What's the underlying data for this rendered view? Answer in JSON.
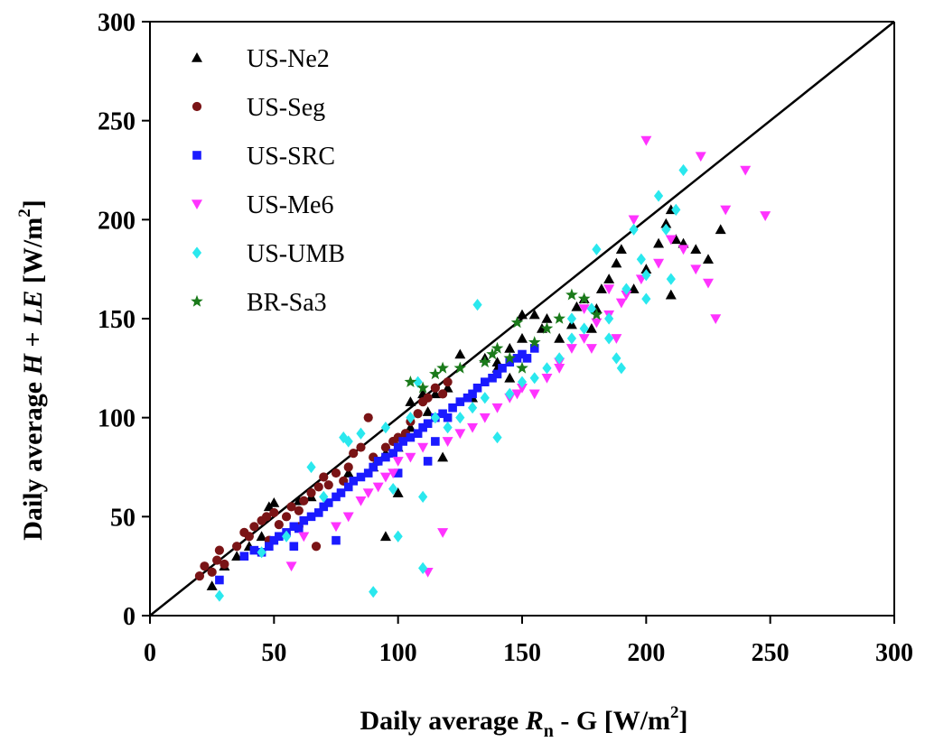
{
  "chart_data": {
    "type": "scatter",
    "xlabel": {
      "prefix": "Daily average ",
      "var": "R",
      "sub": "n",
      "mid": " - G [W/m",
      "sup": "2",
      "suffix": "]"
    },
    "ylabel": {
      "prefix": "Daily average ",
      "v1": "H",
      "plus": " + ",
      "v2": "LE",
      "mid": " [W/m",
      "sup": "2",
      "suffix": "]"
    },
    "xlim": [
      0,
      300
    ],
    "ylim": [
      0,
      300
    ],
    "xticks": [
      "0",
      "50",
      "100",
      "150",
      "200",
      "250",
      "300"
    ],
    "yticks": [
      "0",
      "50",
      "100",
      "150",
      "200",
      "250",
      "300"
    ],
    "reference_line": {
      "name": "1:1",
      "from": [
        0,
        0
      ],
      "to": [
        300,
        300
      ],
      "color": "#000000"
    },
    "legend": {
      "position": "top-left"
    },
    "series": [
      {
        "name": "US-Ne2",
        "marker": "triangle-up",
        "color": "#000000",
        "points": [
          [
            25,
            15
          ],
          [
            30,
            25
          ],
          [
            35,
            30
          ],
          [
            40,
            35
          ],
          [
            45,
            40
          ],
          [
            48,
            55
          ],
          [
            50,
            57
          ],
          [
            60,
            58
          ],
          [
            65,
            60
          ],
          [
            80,
            72
          ],
          [
            90,
            75
          ],
          [
            95,
            82
          ],
          [
            100,
            85
          ],
          [
            105,
            95
          ],
          [
            110,
            110
          ],
          [
            112,
            103
          ],
          [
            115,
            112
          ],
          [
            120,
            115
          ],
          [
            125,
            132
          ],
          [
            130,
            110
          ],
          [
            135,
            130
          ],
          [
            140,
            128
          ],
          [
            145,
            135
          ],
          [
            150,
            140
          ],
          [
            155,
            152
          ],
          [
            158,
            145
          ],
          [
            160,
            150
          ],
          [
            165,
            140
          ],
          [
            170,
            147
          ],
          [
            172,
            156
          ],
          [
            175,
            160
          ],
          [
            178,
            145
          ],
          [
            180,
            155
          ],
          [
            182,
            165
          ],
          [
            185,
            170
          ],
          [
            188,
            178
          ],
          [
            190,
            185
          ],
          [
            195,
            165
          ],
          [
            200,
            175
          ],
          [
            205,
            188
          ],
          [
            208,
            198
          ],
          [
            210,
            205
          ],
          [
            212,
            190
          ],
          [
            215,
            188
          ],
          [
            210,
            162
          ],
          [
            220,
            185
          ],
          [
            225,
            180
          ],
          [
            230,
            195
          ],
          [
            118,
            80
          ],
          [
            95,
            40
          ],
          [
            100,
            62
          ],
          [
            105,
            108
          ],
          [
            110,
            112
          ],
          [
            150,
            152
          ],
          [
            140,
            125
          ],
          [
            145,
            120
          ]
        ]
      },
      {
        "name": "US-Seg",
        "marker": "circle",
        "color": "#7a1416",
        "points": [
          [
            20,
            20
          ],
          [
            22,
            25
          ],
          [
            25,
            22
          ],
          [
            27,
            28
          ],
          [
            28,
            33
          ],
          [
            30,
            26
          ],
          [
            35,
            35
          ],
          [
            38,
            42
          ],
          [
            40,
            40
          ],
          [
            42,
            45
          ],
          [
            45,
            48
          ],
          [
            47,
            50
          ],
          [
            50,
            52
          ],
          [
            52,
            46
          ],
          [
            55,
            50
          ],
          [
            57,
            55
          ],
          [
            60,
            53
          ],
          [
            62,
            58
          ],
          [
            65,
            62
          ],
          [
            68,
            65
          ],
          [
            70,
            70
          ],
          [
            72,
            66
          ],
          [
            75,
            72
          ],
          [
            78,
            68
          ],
          [
            80,
            75
          ],
          [
            82,
            82
          ],
          [
            85,
            85
          ],
          [
            88,
            100
          ],
          [
            90,
            80
          ],
          [
            92,
            78
          ],
          [
            95,
            85
          ],
          [
            98,
            88
          ],
          [
            100,
            90
          ],
          [
            103,
            92
          ],
          [
            105,
            98
          ],
          [
            108,
            102
          ],
          [
            110,
            108
          ],
          [
            112,
            110
          ],
          [
            115,
            115
          ],
          [
            118,
            112
          ],
          [
            120,
            118
          ],
          [
            67,
            35
          ],
          [
            60,
            45
          ],
          [
            48,
            38
          ]
        ]
      },
      {
        "name": "US-SRC",
        "marker": "square",
        "color": "#1a1aff",
        "points": [
          [
            28,
            18
          ],
          [
            38,
            30
          ],
          [
            42,
            33
          ],
          [
            45,
            32
          ],
          [
            48,
            35
          ],
          [
            50,
            38
          ],
          [
            52,
            40
          ],
          [
            55,
            42
          ],
          [
            58,
            45
          ],
          [
            60,
            44
          ],
          [
            62,
            48
          ],
          [
            65,
            50
          ],
          [
            68,
            52
          ],
          [
            70,
            55
          ],
          [
            72,
            57
          ],
          [
            75,
            60
          ],
          [
            77,
            62
          ],
          [
            80,
            65
          ],
          [
            82,
            68
          ],
          [
            85,
            70
          ],
          [
            88,
            72
          ],
          [
            90,
            75
          ],
          [
            92,
            78
          ],
          [
            95,
            80
          ],
          [
            98,
            82
          ],
          [
            100,
            85
          ],
          [
            102,
            88
          ],
          [
            105,
            90
          ],
          [
            108,
            92
          ],
          [
            110,
            95
          ],
          [
            112,
            97
          ],
          [
            115,
            100
          ],
          [
            118,
            102
          ],
          [
            120,
            100
          ],
          [
            122,
            105
          ],
          [
            125,
            108
          ],
          [
            128,
            110
          ],
          [
            130,
            112
          ],
          [
            132,
            115
          ],
          [
            135,
            118
          ],
          [
            138,
            120
          ],
          [
            140,
            122
          ],
          [
            142,
            125
          ],
          [
            145,
            128
          ],
          [
            148,
            130
          ],
          [
            150,
            132
          ],
          [
            152,
            130
          ],
          [
            155,
            135
          ],
          [
            100,
            72
          ],
          [
            112,
            78
          ],
          [
            115,
            88
          ],
          [
            75,
            38
          ],
          [
            58,
            35
          ]
        ]
      },
      {
        "name": "US-Me6",
        "marker": "triangle-down",
        "color": "#ff33ff",
        "points": [
          [
            57,
            25
          ],
          [
            62,
            40
          ],
          [
            75,
            45
          ],
          [
            80,
            50
          ],
          [
            85,
            58
          ],
          [
            88,
            62
          ],
          [
            92,
            65
          ],
          [
            95,
            70
          ],
          [
            98,
            72
          ],
          [
            100,
            78
          ],
          [
            105,
            80
          ],
          [
            110,
            85
          ],
          [
            112,
            22
          ],
          [
            118,
            42
          ],
          [
            120,
            88
          ],
          [
            125,
            92
          ],
          [
            130,
            95
          ],
          [
            135,
            100
          ],
          [
            140,
            105
          ],
          [
            145,
            110
          ],
          [
            148,
            112
          ],
          [
            150,
            115
          ],
          [
            155,
            112
          ],
          [
            160,
            120
          ],
          [
            165,
            125
          ],
          [
            170,
            135
          ],
          [
            175,
            140
          ],
          [
            178,
            135
          ],
          [
            180,
            148
          ],
          [
            185,
            152
          ],
          [
            188,
            140
          ],
          [
            190,
            158
          ],
          [
            192,
            162
          ],
          [
            195,
            200
          ],
          [
            198,
            170
          ],
          [
            200,
            240
          ],
          [
            205,
            178
          ],
          [
            210,
            190
          ],
          [
            215,
            185
          ],
          [
            220,
            175
          ],
          [
            222,
            232
          ],
          [
            225,
            168
          ],
          [
            228,
            150
          ],
          [
            232,
            205
          ],
          [
            240,
            225
          ],
          [
            248,
            202
          ],
          [
            185,
            165
          ],
          [
            175,
            155
          ],
          [
            165,
            128
          ]
        ]
      },
      {
        "name": "US-UMB",
        "marker": "diamond",
        "color": "#2ae8ee",
        "points": [
          [
            28,
            10
          ],
          [
            45,
            32
          ],
          [
            55,
            40
          ],
          [
            65,
            75
          ],
          [
            70,
            60
          ],
          [
            78,
            90
          ],
          [
            80,
            88
          ],
          [
            85,
            92
          ],
          [
            90,
            12
          ],
          [
            95,
            95
          ],
          [
            98,
            64
          ],
          [
            100,
            40
          ],
          [
            105,
            100
          ],
          [
            108,
            118
          ],
          [
            110,
            60
          ],
          [
            110,
            24
          ],
          [
            115,
            100
          ],
          [
            120,
            95
          ],
          [
            125,
            100
          ],
          [
            130,
            105
          ],
          [
            132,
            157
          ],
          [
            135,
            110
          ],
          [
            140,
            90
          ],
          [
            145,
            112
          ],
          [
            150,
            118
          ],
          [
            155,
            120
          ],
          [
            160,
            125
          ],
          [
            165,
            130
          ],
          [
            170,
            140
          ],
          [
            175,
            145
          ],
          [
            178,
            155
          ],
          [
            180,
            185
          ],
          [
            185,
            150
          ],
          [
            188,
            130
          ],
          [
            190,
            125
          ],
          [
            192,
            165
          ],
          [
            195,
            195
          ],
          [
            198,
            180
          ],
          [
            200,
            172
          ],
          [
            205,
            212
          ],
          [
            208,
            195
          ],
          [
            210,
            170
          ],
          [
            212,
            205
          ],
          [
            215,
            225
          ],
          [
            200,
            160
          ],
          [
            185,
            140
          ],
          [
            170,
            150
          ]
        ]
      },
      {
        "name": "BR-Sa3",
        "marker": "star",
        "color": "#1a7a1a",
        "points": [
          [
            105,
            118
          ],
          [
            110,
            115
          ],
          [
            115,
            122
          ],
          [
            118,
            125
          ],
          [
            125,
            125
          ],
          [
            135,
            128
          ],
          [
            138,
            132
          ],
          [
            140,
            135
          ],
          [
            145,
            130
          ],
          [
            148,
            148
          ],
          [
            150,
            125
          ],
          [
            155,
            138
          ],
          [
            160,
            145
          ],
          [
            165,
            150
          ],
          [
            170,
            162
          ],
          [
            175,
            160
          ],
          [
            180,
            152
          ]
        ]
      }
    ]
  }
}
